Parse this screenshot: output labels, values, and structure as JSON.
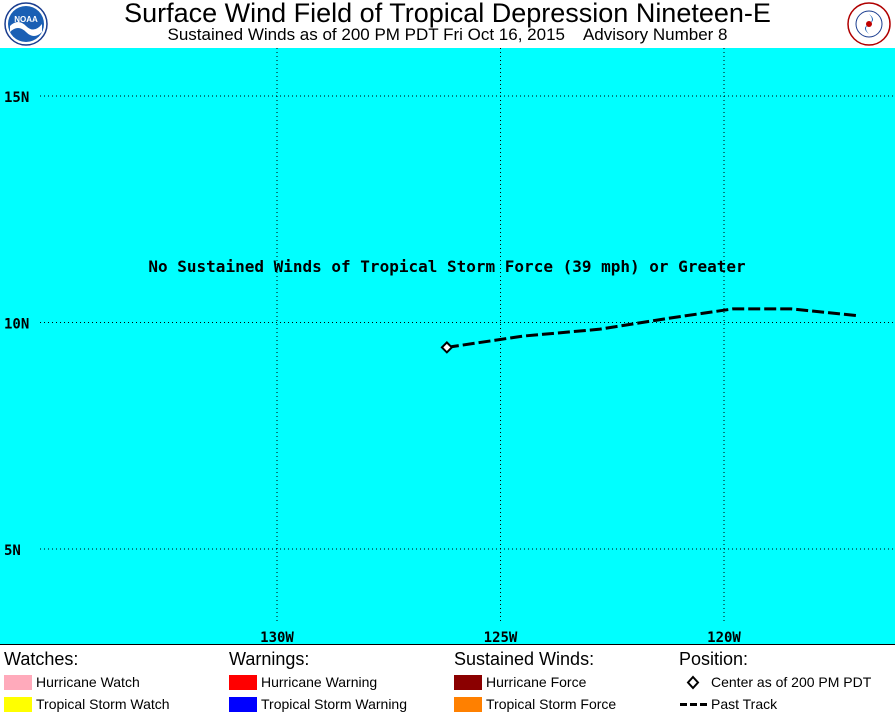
{
  "header": {
    "title": "Surface Wind Field of Tropical Depression Nineteen-E",
    "subtitle": "Sustained Winds as of 200 PM PDT Fri Oct 16, 2015    Advisory Number 8",
    "left_logo_text": "NOAA",
    "right_logo_text": "NATIONAL WEATHER SERVICE"
  },
  "map": {
    "background": "#00ffff",
    "message": "No Sustained Winds of Tropical Storm Force (39 mph) or Greater",
    "lat_labels": [
      "15N",
      "10N",
      "5N"
    ],
    "lon_labels": [
      "130W",
      "125W",
      "120W"
    ],
    "gridlines": true,
    "center": {
      "lat": 9.45,
      "lon": 126.2
    },
    "past_track": [
      {
        "lat": 9.45,
        "lon": 126.2
      },
      {
        "lat": 9.7,
        "lon": 124.5
      },
      {
        "lat": 9.85,
        "lon": 122.8
      },
      {
        "lat": 10.1,
        "lon": 121.2
      },
      {
        "lat": 10.3,
        "lon": 119.8
      },
      {
        "lat": 10.3,
        "lon": 118.5
      },
      {
        "lat": 10.15,
        "lon": 117.0
      }
    ]
  },
  "legend": {
    "watches": {
      "heading": "Watches:",
      "items": [
        {
          "label": "Hurricane Watch",
          "color": "#ffaabb"
        },
        {
          "label": "Tropical Storm Watch",
          "color": "#ffff00"
        }
      ]
    },
    "warnings": {
      "heading": "Warnings:",
      "items": [
        {
          "label": "Hurricane Warning",
          "color": "#ff0000"
        },
        {
          "label": "Tropical Storm Warning",
          "color": "#0000ff"
        }
      ]
    },
    "winds": {
      "heading": "Sustained Winds:",
      "items": [
        {
          "label": "Hurricane Force",
          "color": "#8b0000"
        },
        {
          "label": "Tropical Storm Force",
          "color": "#ff8000"
        }
      ]
    },
    "position": {
      "heading": "Position:",
      "center_label": "Center as of 200 PM PDT",
      "track_label": "Past Track"
    }
  }
}
